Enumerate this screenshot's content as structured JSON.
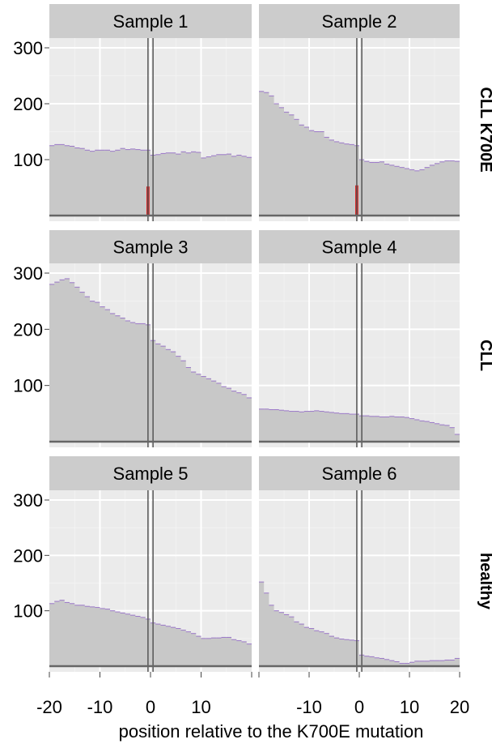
{
  "chart_data": {
    "type": "area",
    "xlabel": "position relative to the K700E mutation",
    "ylabel": "",
    "xlim": [
      -20,
      20
    ],
    "ylim": [
      0,
      300
    ],
    "y_ticks": [
      100,
      200,
      300
    ],
    "mutation_lines_x": [
      -0.5,
      0.5
    ],
    "grid": true,
    "panel_background": "#ebebeb",
    "strip_background": "#cccccc",
    "coverage_fill": "#c8c8c8",
    "coverage_outline": "#9b78c8",
    "mutant_color": "#d62020",
    "rows": [
      {
        "label": "CLL K700E",
        "panels": [
          0,
          1
        ]
      },
      {
        "label": "CLL",
        "panels": [
          2,
          3
        ]
      },
      {
        "label": "healthy",
        "panels": [
          4,
          5
        ]
      }
    ],
    "column_ticks": [
      {
        "values": [
          -20,
          -10,
          0,
          10
        ],
        "labels": [
          "-20",
          "-10",
          "0",
          "10"
        ]
      },
      {
        "values": [
          -10,
          0,
          10,
          20
        ],
        "labels": [
          "-10",
          "0",
          "10",
          "20"
        ]
      }
    ],
    "panels": [
      {
        "title": "Sample 1",
        "x": [
          -20,
          -19,
          -18,
          -17,
          -16,
          -15,
          -14,
          -13,
          -12,
          -11,
          -10,
          -9,
          -8,
          -7,
          -6,
          -5,
          -4,
          -3,
          -2,
          -1,
          0,
          1,
          2,
          3,
          4,
          5,
          6,
          7,
          8,
          9,
          10,
          11,
          12,
          13,
          14,
          15,
          16,
          17,
          18,
          19
        ],
        "values": [
          125,
          127,
          127,
          125,
          124,
          121,
          120,
          117,
          115,
          117,
          117,
          117,
          115,
          117,
          120,
          118,
          119,
          118,
          117,
          117,
          108,
          109,
          111,
          112,
          112,
          110,
          114,
          112,
          114,
          113,
          103,
          105,
          107,
          109,
          109,
          110,
          106,
          108,
          106,
          104
        ],
        "mutant_bar": {
          "x": -0.5,
          "value": 52
        }
      },
      {
        "title": "Sample 2",
        "x": [
          -20,
          -19,
          -18,
          -17,
          -16,
          -15,
          -14,
          -13,
          -12,
          -11,
          -10,
          -9,
          -8,
          -7,
          -6,
          -5,
          -4,
          -3,
          -2,
          -1,
          0,
          1,
          2,
          3,
          4,
          5,
          6,
          7,
          8,
          9,
          10,
          11,
          12,
          13,
          14,
          15,
          16,
          17,
          18,
          19
        ],
        "values": [
          222,
          220,
          214,
          200,
          193,
          185,
          180,
          172,
          162,
          158,
          152,
          150,
          150,
          140,
          135,
          132,
          130,
          128,
          127,
          125,
          100,
          97,
          95,
          95,
          96,
          92,
          90,
          88,
          86,
          84,
          82,
          80,
          82,
          86,
          90,
          93,
          96,
          98,
          98,
          97
        ],
        "mutant_bar": {
          "x": -0.5,
          "value": 54
        }
      },
      {
        "title": "Sample 3",
        "x": [
          -20,
          -19,
          -18,
          -17,
          -16,
          -15,
          -14,
          -13,
          -12,
          -11,
          -10,
          -9,
          -8,
          -7,
          -6,
          -5,
          -4,
          -3,
          -2,
          -1,
          0,
          1,
          2,
          3,
          4,
          5,
          6,
          7,
          8,
          9,
          10,
          11,
          12,
          13,
          14,
          15,
          16,
          17,
          18,
          19
        ],
        "values": [
          280,
          284,
          288,
          290,
          283,
          275,
          266,
          258,
          250,
          248,
          240,
          235,
          228,
          224,
          220,
          215,
          212,
          210,
          210,
          208,
          180,
          174,
          170,
          164,
          160,
          152,
          144,
          132,
          124,
          120,
          116,
          112,
          108,
          104,
          98,
          95,
          90,
          87,
          84,
          78
        ]
      },
      {
        "title": "Sample 4",
        "x": [
          -20,
          -19,
          -18,
          -17,
          -16,
          -15,
          -14,
          -13,
          -12,
          -11,
          -10,
          -9,
          -8,
          -7,
          -6,
          -5,
          -4,
          -3,
          -2,
          -1,
          0,
          1,
          2,
          3,
          4,
          5,
          6,
          7,
          8,
          9,
          10,
          11,
          12,
          13,
          14,
          15,
          16,
          17,
          18,
          19
        ],
        "values": [
          58,
          58,
          57,
          57,
          56,
          55,
          54,
          54,
          53,
          54,
          54,
          55,
          54,
          53,
          52,
          51,
          50,
          50,
          49,
          49,
          46,
          46,
          45,
          45,
          44,
          44,
          45,
          44,
          44,
          43,
          41,
          39,
          37,
          36,
          34,
          32,
          30,
          29,
          25,
          13
        ]
      },
      {
        "title": "Sample 5",
        "x": [
          -20,
          -19,
          -18,
          -17,
          -16,
          -15,
          -14,
          -13,
          -12,
          -11,
          -10,
          -9,
          -8,
          -7,
          -6,
          -5,
          -4,
          -3,
          -2,
          -1,
          0,
          1,
          2,
          3,
          4,
          5,
          6,
          7,
          8,
          9,
          10,
          11,
          12,
          13,
          14,
          15,
          16,
          17,
          18,
          19
        ],
        "values": [
          113,
          117,
          119,
          115,
          113,
          110,
          110,
          108,
          107,
          106,
          104,
          103,
          100,
          98,
          96,
          94,
          92,
          90,
          88,
          85,
          78,
          76,
          74,
          72,
          70,
          68,
          65,
          62,
          59,
          54,
          50,
          50,
          51,
          51,
          52,
          52,
          48,
          46,
          44,
          40
        ]
      },
      {
        "title": "Sample 6",
        "x": [
          -20,
          -19,
          -18,
          -17,
          -16,
          -15,
          -14,
          -13,
          -12,
          -11,
          -10,
          -9,
          -8,
          -7,
          -6,
          -5,
          -4,
          -3,
          -2,
          -1,
          0,
          1,
          2,
          3,
          4,
          5,
          6,
          7,
          8,
          9,
          10,
          11,
          12,
          13,
          14,
          15,
          16,
          17,
          18,
          19
        ],
        "values": [
          152,
          132,
          110,
          100,
          97,
          93,
          89,
          80,
          76,
          70,
          68,
          64,
          62,
          59,
          54,
          51,
          49,
          48,
          47,
          46,
          20,
          18,
          17,
          15,
          14,
          12,
          10,
          8,
          5,
          5,
          7,
          9,
          9,
          9,
          10,
          10,
          10,
          11,
          11,
          14
        ]
      }
    ]
  }
}
